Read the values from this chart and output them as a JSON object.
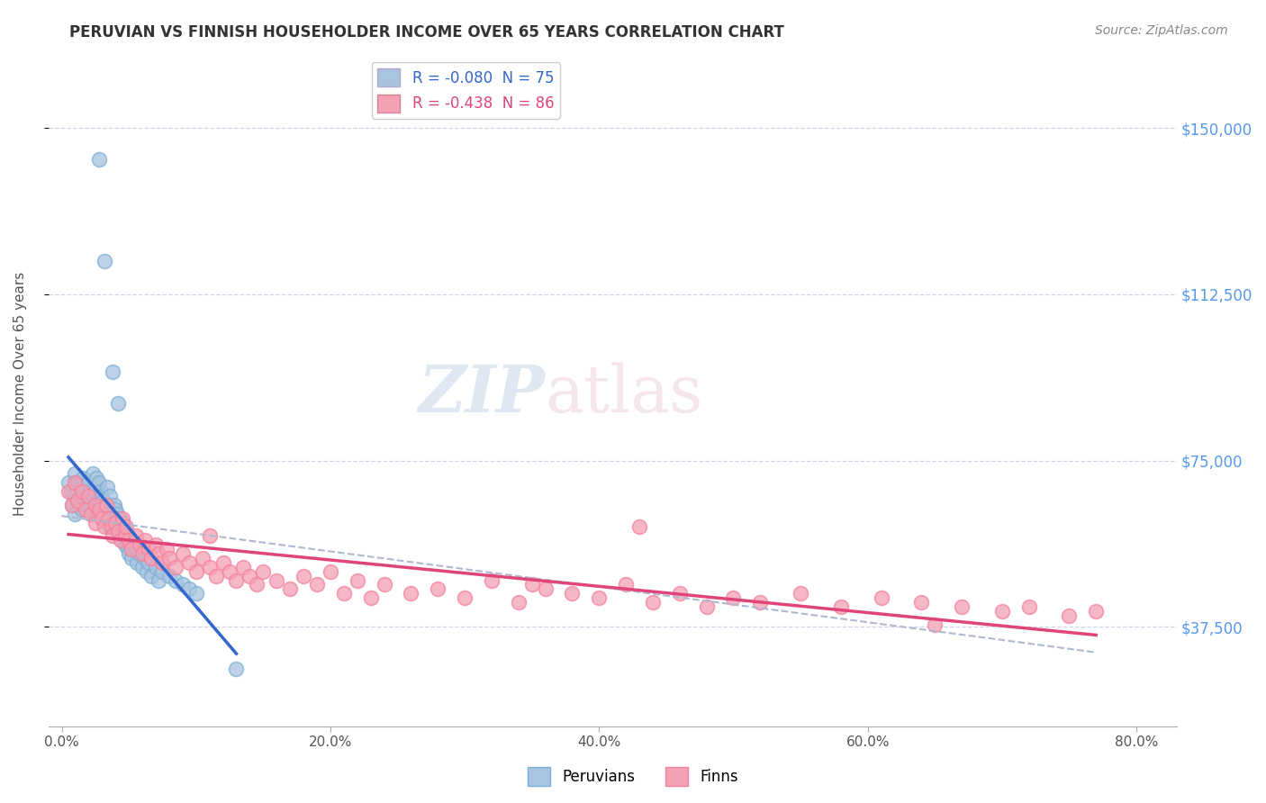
{
  "title": "PERUVIAN VS FINNISH HOUSEHOLDER INCOME OVER 65 YEARS CORRELATION CHART",
  "source_text": "Source: ZipAtlas.com",
  "ylabel": "Householder Income Over 65 years",
  "xlabel_ticks": [
    "0.0%",
    "20.0%",
    "40.0%",
    "60.0%",
    "80.0%"
  ],
  "xlabel_tick_vals": [
    0.0,
    0.2,
    0.4,
    0.6,
    0.8
  ],
  "ytick_labels": [
    "$37,500",
    "$75,000",
    "$112,500",
    "$150,000"
  ],
  "ytick_vals": [
    37500,
    75000,
    112500,
    150000
  ],
  "ylim": [
    15000,
    165000
  ],
  "xlim": [
    -0.01,
    0.83
  ],
  "legend_entries": [
    {
      "label": "R = -0.080  N = 75",
      "color": "#a8c4e0"
    },
    {
      "label": "R = -0.438  N = 86",
      "color": "#f4a0b0"
    }
  ],
  "legend_labels": [
    "Peruvians",
    "Finns"
  ],
  "watermark_zip": "ZIP",
  "watermark_atlas": "atlas",
  "blue_color": "#7bafd4",
  "pink_color": "#f4819a",
  "blue_scatter": "#a8c4e0",
  "pink_scatter": "#f4a0b5",
  "trend_blue": "#3366cc",
  "trend_pink": "#e0457a",
  "trend_dashed_color": "#b0b8d0",
  "title_color": "#333333",
  "source_color": "#888888",
  "axis_label_color": "#555555",
  "ytick_color": "#5599ee",
  "grid_color": "#d0d4e8",
  "peruvian_x": [
    0.005,
    0.007,
    0.008,
    0.01,
    0.01,
    0.01,
    0.012,
    0.013,
    0.015,
    0.015,
    0.016,
    0.018,
    0.02,
    0.02,
    0.021,
    0.022,
    0.023,
    0.024,
    0.025,
    0.025,
    0.026,
    0.027,
    0.028,
    0.028,
    0.029,
    0.03,
    0.03,
    0.031,
    0.032,
    0.033,
    0.034,
    0.035,
    0.035,
    0.036,
    0.037,
    0.038,
    0.039,
    0.04,
    0.04,
    0.041,
    0.042,
    0.043,
    0.044,
    0.045,
    0.045,
    0.046,
    0.047,
    0.048,
    0.049,
    0.05,
    0.05,
    0.051,
    0.052,
    0.053,
    0.055,
    0.056,
    0.058,
    0.06,
    0.062,
    0.063,
    0.065,
    0.067,
    0.07,
    0.072,
    0.075,
    0.08,
    0.085,
    0.09,
    0.095,
    0.1,
    0.028,
    0.032,
    0.038,
    0.042,
    0.13
  ],
  "peruvian_y": [
    70000,
    68000,
    65000,
    72000,
    67000,
    63000,
    70000,
    65000,
    69000,
    64000,
    71000,
    66000,
    70000,
    65000,
    68000,
    63000,
    72000,
    67000,
    68000,
    63000,
    71000,
    66000,
    70000,
    65000,
    68000,
    67000,
    63000,
    66000,
    62000,
    65000,
    69000,
    64000,
    60000,
    67000,
    63000,
    61000,
    65000,
    64000,
    60000,
    63000,
    59000,
    62000,
    58000,
    61000,
    57000,
    60000,
    56000,
    59000,
    55000,
    58000,
    54000,
    57000,
    53000,
    56000,
    55000,
    52000,
    54000,
    51000,
    53000,
    50000,
    52000,
    49000,
    51000,
    48000,
    50000,
    49000,
    48000,
    47000,
    46000,
    45000,
    143000,
    120000,
    95000,
    88000,
    28000
  ],
  "finn_x": [
    0.005,
    0.008,
    0.01,
    0.012,
    0.015,
    0.018,
    0.02,
    0.022,
    0.025,
    0.025,
    0.028,
    0.03,
    0.032,
    0.033,
    0.035,
    0.037,
    0.038,
    0.04,
    0.042,
    0.044,
    0.045,
    0.047,
    0.048,
    0.05,
    0.052,
    0.055,
    0.058,
    0.06,
    0.062,
    0.065,
    0.067,
    0.07,
    0.072,
    0.075,
    0.078,
    0.08,
    0.085,
    0.09,
    0.095,
    0.1,
    0.105,
    0.11,
    0.115,
    0.12,
    0.125,
    0.13,
    0.135,
    0.14,
    0.145,
    0.15,
    0.16,
    0.17,
    0.18,
    0.19,
    0.2,
    0.21,
    0.22,
    0.23,
    0.24,
    0.26,
    0.28,
    0.3,
    0.32,
    0.34,
    0.36,
    0.38,
    0.4,
    0.42,
    0.44,
    0.46,
    0.48,
    0.5,
    0.52,
    0.55,
    0.58,
    0.61,
    0.64,
    0.67,
    0.7,
    0.72,
    0.75,
    0.77,
    0.11,
    0.35,
    0.65,
    0.43
  ],
  "finn_y": [
    68000,
    65000,
    70000,
    66000,
    68000,
    64000,
    67000,
    63000,
    65000,
    61000,
    64000,
    62000,
    60000,
    65000,
    62000,
    60000,
    58000,
    61000,
    59000,
    57000,
    62000,
    58000,
    60000,
    57000,
    55000,
    58000,
    56000,
    54000,
    57000,
    55000,
    53000,
    56000,
    54000,
    52000,
    55000,
    53000,
    51000,
    54000,
    52000,
    50000,
    53000,
    51000,
    49000,
    52000,
    50000,
    48000,
    51000,
    49000,
    47000,
    50000,
    48000,
    46000,
    49000,
    47000,
    50000,
    45000,
    48000,
    44000,
    47000,
    45000,
    46000,
    44000,
    48000,
    43000,
    46000,
    45000,
    44000,
    47000,
    43000,
    45000,
    42000,
    44000,
    43000,
    45000,
    42000,
    44000,
    43000,
    42000,
    41000,
    42000,
    40000,
    41000,
    58000,
    47000,
    38000,
    60000
  ]
}
